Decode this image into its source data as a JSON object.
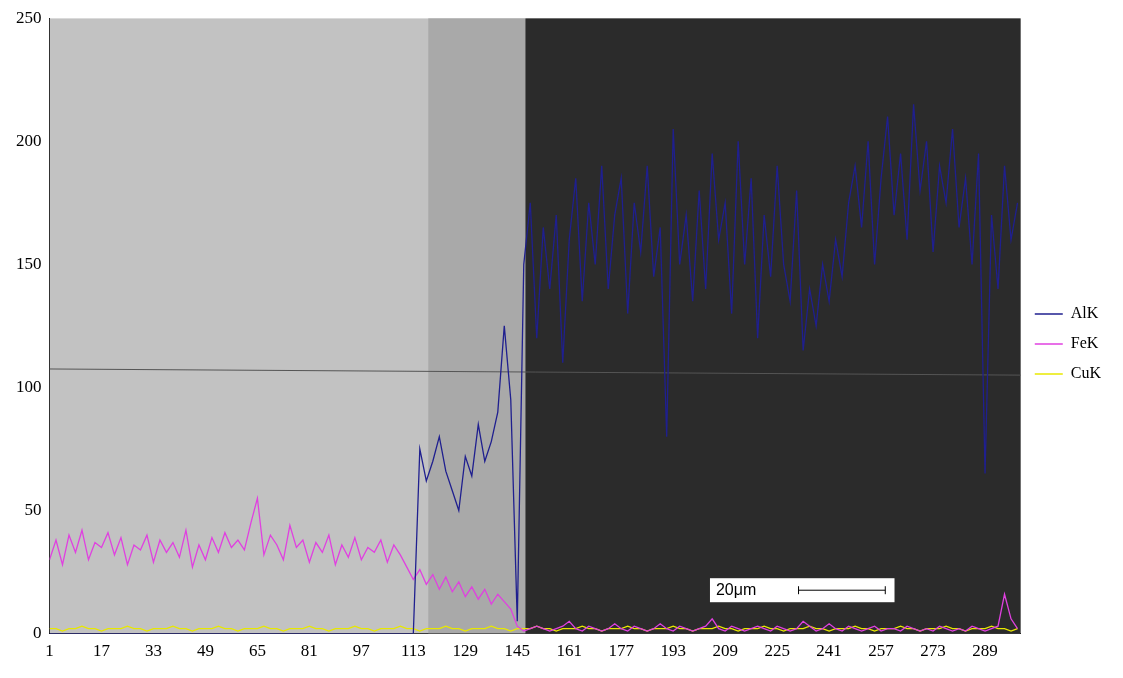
{
  "chart_data": {
    "type": "line",
    "annotation": "20μm",
    "x": [
      1,
      3,
      5,
      7,
      9,
      11,
      13,
      15,
      17,
      19,
      21,
      23,
      25,
      27,
      29,
      31,
      33,
      35,
      37,
      39,
      41,
      43,
      45,
      47,
      49,
      51,
      53,
      55,
      57,
      59,
      61,
      63,
      65,
      67,
      69,
      71,
      73,
      75,
      77,
      79,
      81,
      83,
      85,
      87,
      89,
      91,
      93,
      95,
      97,
      99,
      101,
      103,
      105,
      107,
      109,
      111,
      113,
      115,
      117,
      119,
      121,
      123,
      125,
      127,
      129,
      131,
      133,
      135,
      137,
      139,
      141,
      143,
      145,
      147,
      149,
      151,
      153,
      155,
      157,
      159,
      161,
      163,
      165,
      167,
      169,
      171,
      173,
      175,
      177,
      179,
      181,
      183,
      185,
      187,
      189,
      191,
      193,
      195,
      197,
      199,
      201,
      203,
      205,
      207,
      209,
      211,
      213,
      215,
      217,
      219,
      221,
      223,
      225,
      227,
      229,
      231,
      233,
      235,
      237,
      239,
      241,
      243,
      245,
      247,
      249,
      251,
      253,
      255,
      257,
      259,
      261,
      263,
      265,
      267,
      269,
      271,
      273,
      275,
      277,
      279,
      281,
      283,
      285,
      287,
      289,
      291,
      293,
      295,
      297,
      299
    ],
    "series": [
      {
        "name": "AlK",
        "color": "#1f1f8f",
        "values": [
          0,
          0,
          0,
          0,
          0,
          0,
          0,
          0,
          0,
          0,
          0,
          0,
          0,
          0,
          0,
          0,
          0,
          0,
          0,
          0,
          0,
          0,
          0,
          0,
          0,
          0,
          0,
          0,
          0,
          0,
          0,
          0,
          0,
          0,
          0,
          0,
          0,
          0,
          0,
          0,
          0,
          0,
          0,
          0,
          0,
          0,
          0,
          0,
          0,
          0,
          0,
          0,
          0,
          0,
          0,
          0,
          0,
          75,
          62,
          70,
          80,
          66,
          58,
          50,
          72,
          64,
          85,
          70,
          78,
          90,
          125,
          95,
          5,
          150,
          175,
          120,
          165,
          140,
          170,
          110,
          160,
          185,
          135,
          175,
          150,
          190,
          140,
          170,
          185,
          130,
          175,
          155,
          190,
          145,
          165,
          80,
          205,
          150,
          170,
          135,
          180,
          140,
          195,
          160,
          175,
          130,
          200,
          150,
          185,
          120,
          170,
          145,
          190,
          150,
          135,
          180,
          115,
          140,
          125,
          150,
          135,
          160,
          145,
          175,
          190,
          165,
          200,
          150,
          185,
          210,
          170,
          195,
          160,
          215,
          180,
          200,
          155,
          190,
          175,
          205,
          165,
          185,
          150,
          195,
          65,
          170,
          140,
          190,
          160,
          175
        ]
      },
      {
        "name": "FeK",
        "color": "#e040e0",
        "values": [
          30,
          38,
          28,
          40,
          33,
          42,
          30,
          37,
          35,
          41,
          32,
          39,
          28,
          36,
          34,
          40,
          29,
          38,
          33,
          37,
          31,
          42,
          27,
          36,
          30,
          39,
          33,
          41,
          35,
          38,
          34,
          45,
          55,
          32,
          40,
          36,
          30,
          44,
          35,
          38,
          29,
          37,
          33,
          40,
          28,
          36,
          31,
          39,
          30,
          35,
          33,
          38,
          29,
          36,
          32,
          27,
          22,
          26,
          20,
          24,
          18,
          23,
          17,
          21,
          15,
          19,
          14,
          18,
          12,
          16,
          13,
          10,
          3,
          1,
          2,
          3,
          2,
          1,
          2,
          3,
          5,
          2,
          1,
          3,
          2,
          1,
          2,
          4,
          2,
          1,
          3,
          2,
          1,
          2,
          4,
          2,
          1,
          3,
          2,
          1,
          2,
          3,
          6,
          2,
          1,
          3,
          2,
          1,
          2,
          3,
          2,
          1,
          3,
          2,
          1,
          2,
          5,
          3,
          1,
          2,
          4,
          2,
          1,
          3,
          2,
          1,
          2,
          3,
          1,
          2,
          2,
          1,
          3,
          2,
          1,
          2,
          1,
          3,
          2,
          1,
          2,
          1,
          3,
          2,
          1,
          2,
          3,
          16,
          6,
          2
        ]
      },
      {
        "name": "CuK",
        "color": "#e8e800",
        "values": [
          2,
          2,
          1,
          2,
          2,
          3,
          2,
          2,
          1,
          2,
          2,
          2,
          3,
          2,
          2,
          1,
          2,
          2,
          2,
          3,
          2,
          2,
          1,
          2,
          2,
          2,
          3,
          2,
          2,
          1,
          2,
          2,
          2,
          3,
          2,
          2,
          1,
          2,
          2,
          2,
          3,
          2,
          2,
          1,
          2,
          2,
          2,
          3,
          2,
          2,
          1,
          2,
          2,
          2,
          3,
          2,
          2,
          1,
          2,
          2,
          2,
          3,
          2,
          2,
          1,
          2,
          2,
          2,
          3,
          2,
          2,
          1,
          2,
          2,
          2,
          3,
          2,
          2,
          1,
          2,
          2,
          2,
          3,
          2,
          2,
          1,
          2,
          2,
          2,
          3,
          2,
          2,
          1,
          2,
          2,
          2,
          3,
          2,
          2,
          1,
          2,
          2,
          2,
          3,
          2,
          2,
          1,
          2,
          2,
          2,
          3,
          2,
          2,
          1,
          2,
          2,
          2,
          3,
          2,
          2,
          1,
          2,
          2,
          2,
          3,
          2,
          2,
          1,
          2,
          2,
          2,
          3,
          2,
          2,
          1,
          2,
          2,
          2,
          3,
          2,
          2,
          1,
          2,
          2,
          2,
          3,
          2,
          2,
          1,
          2
        ]
      }
    ],
    "xlim": [
      1,
      300
    ],
    "xticks": [
      1,
      17,
      33,
      49,
      65,
      81,
      97,
      113,
      129,
      145,
      161,
      177,
      193,
      209,
      225,
      241,
      257,
      273,
      289
    ],
    "ylim": [
      0,
      250
    ],
    "yticks": [
      0,
      50,
      100,
      150,
      200,
      250
    ],
    "grid": false,
    "legend": "right"
  }
}
